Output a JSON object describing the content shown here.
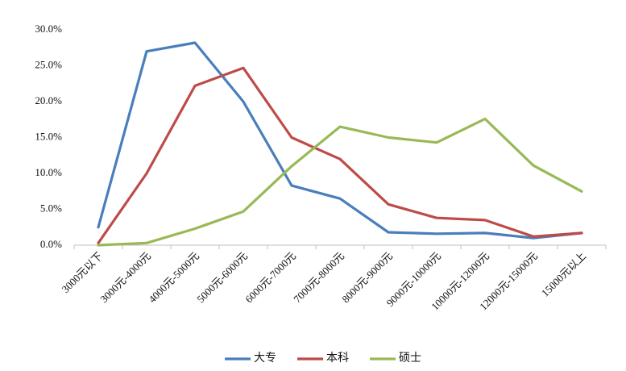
{
  "chart_data": {
    "type": "line",
    "categories": [
      "3000元以下",
      "3000元-4000元",
      "4000元-5000元",
      "5000元-6000元",
      "6000元-7000元",
      "7000元-8000元",
      "8000元-9000元",
      "9000元-10000元",
      "10000元-12000元",
      "12000元-15000元",
      "15000元以上"
    ],
    "series": [
      {
        "name": "大专",
        "color": "#4a7ebb",
        "values": [
          2.5,
          27.0,
          28.2,
          20.0,
          8.3,
          6.5,
          1.8,
          1.6,
          1.7,
          1.0,
          1.7
        ]
      },
      {
        "name": "本科",
        "color": "#be4b48",
        "values": [
          0.3,
          10.0,
          22.2,
          24.7,
          15.0,
          12.0,
          5.7,
          3.8,
          3.5,
          1.2,
          1.7
        ]
      },
      {
        "name": "硕士",
        "color": "#98b954",
        "values": [
          0.0,
          0.3,
          2.3,
          4.7,
          11.0,
          16.5,
          15.0,
          14.3,
          17.6,
          11.1,
          7.5
        ]
      }
    ],
    "y_ticks": [
      "0.0%",
      "5.0%",
      "10.0%",
      "15.0%",
      "20.0%",
      "25.0%",
      "30.0%"
    ],
    "ylim": [
      0,
      30
    ],
    "grid": false,
    "legend_position": "bottom"
  }
}
